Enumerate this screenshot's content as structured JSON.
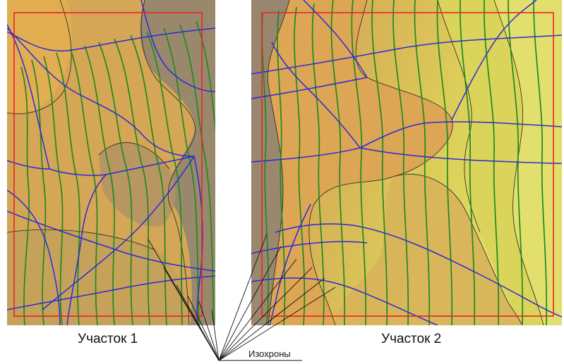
{
  "panels": [
    {
      "caption": "Участок 1"
    },
    {
      "caption": "Участок 2"
    }
  ],
  "pointer_label": "Изохроны",
  "colors": {
    "frame": "#e8242a",
    "isochrone": "#1f8a1f",
    "flowline": "#2a2ad6",
    "contour": "#222222",
    "fill_dark": "#8f8272",
    "fill_mid": "#c4a562",
    "fill_warm": "#e0a94e",
    "fill_light": "#d9cf55",
    "fill_pale": "#e3e06c"
  }
}
